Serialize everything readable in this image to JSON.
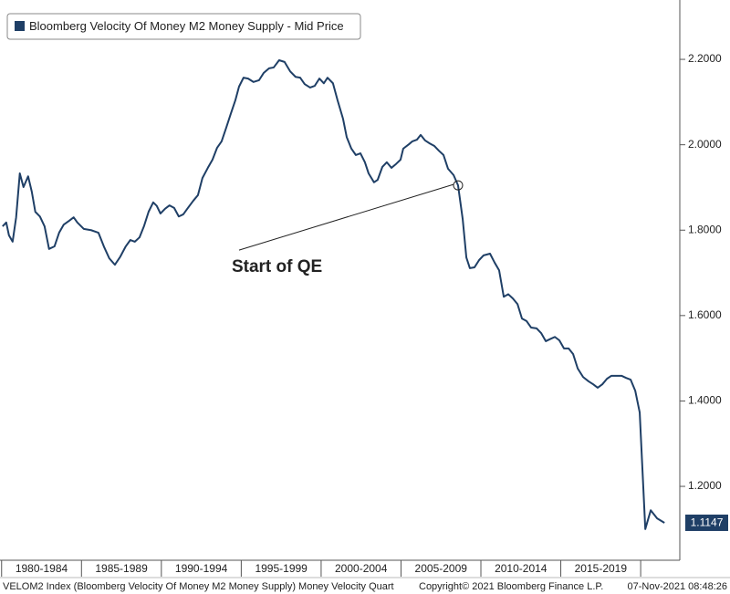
{
  "chart_data": {
    "type": "line",
    "series": [
      {
        "name": "Bloomberg Velocity Of Money M2 Money Supply - Mid Price",
        "color": "#1f3f66",
        "values": [
          1.809,
          1.818,
          1.788,
          1.773,
          1.83,
          1.933,
          1.901,
          1.926,
          1.89,
          1.843,
          1.832,
          1.809,
          1.756,
          1.762,
          1.794,
          1.813,
          1.822,
          1.83,
          1.818,
          1.803,
          1.8,
          1.794,
          1.762,
          1.734,
          1.719,
          1.738,
          1.762,
          1.777,
          1.773,
          1.783,
          1.809,
          1.843,
          1.865,
          1.857,
          1.839,
          1.85,
          1.858,
          1.852,
          1.832,
          1.837,
          1.852,
          1.869,
          1.882,
          1.922,
          1.946,
          1.965,
          1.993,
          2.008,
          2.04,
          2.072,
          2.104,
          2.136,
          2.157,
          2.155,
          2.147,
          2.151,
          2.168,
          2.179,
          2.181,
          2.198,
          2.194,
          2.172,
          2.159,
          2.157,
          2.142,
          2.134,
          2.138,
          2.155,
          2.144,
          2.157,
          2.144,
          2.104,
          2.061,
          2.018,
          1.991,
          1.976,
          1.98,
          1.959,
          1.933,
          1.912,
          1.918,
          1.948,
          1.959,
          1.946,
          1.955,
          1.965,
          1.991,
          2.001,
          2.008,
          2.012,
          2.023,
          2.01,
          2.003,
          1.997,
          1.986,
          1.976,
          1.944,
          1.929,
          1.905,
          1.826,
          1.736,
          1.711,
          1.713,
          1.73,
          1.741,
          1.745,
          1.724,
          1.706,
          1.644,
          1.65,
          1.64,
          1.627,
          1.593,
          1.587,
          1.572,
          1.57,
          1.559,
          1.54,
          1.545,
          1.55,
          1.542,
          1.523,
          1.523,
          1.51,
          1.476,
          1.456,
          1.446,
          1.439,
          1.431,
          1.439,
          1.452,
          1.459,
          1.459,
          1.459,
          1.454,
          1.45,
          1.424,
          1.373,
          1.1,
          1.144,
          1.125,
          1.1147
        ]
      }
    ],
    "x": [
      1980.06,
      1980.29,
      1980.46,
      1980.69,
      1980.91,
      1981.14,
      1981.37,
      1981.66,
      1981.89,
      1982.11,
      1982.4,
      1982.69,
      1982.97,
      1983.31,
      1983.6,
      1983.89,
      1984.23,
      1984.51,
      1984.74,
      1985.14,
      1985.6,
      1986.06,
      1986.4,
      1986.74,
      1987.09,
      1987.43,
      1987.77,
      1988.06,
      1988.34,
      1988.63,
      1988.91,
      1989.2,
      1989.49,
      1989.71,
      1989.94,
      1990.23,
      1990.51,
      1990.8,
      1991.09,
      1991.37,
      1991.66,
      1992,
      1992.29,
      1992.57,
      1992.91,
      1993.2,
      1993.49,
      1993.77,
      1994.06,
      1994.34,
      1994.63,
      1994.86,
      1995.14,
      1995.43,
      1995.77,
      1996.11,
      1996.4,
      1996.74,
      1997.03,
      1997.37,
      1997.71,
      1998.06,
      1998.4,
      1998.69,
      1998.97,
      1999.31,
      1999.6,
      1999.89,
      2000.17,
      2000.4,
      2000.74,
      2001.03,
      2001.37,
      2001.6,
      2001.89,
      2002.17,
      2002.46,
      2002.74,
      2002.97,
      2003.31,
      2003.54,
      2003.83,
      2004.11,
      2004.4,
      2004.69,
      2004.97,
      2005.14,
      2005.49,
      2005.71,
      2006,
      2006.23,
      2006.51,
      2006.8,
      2007.09,
      2007.37,
      2007.66,
      2007.94,
      2008.29,
      2008.57,
      2008.86,
      2009.09,
      2009.31,
      2009.6,
      2009.89,
      2010.17,
      2010.57,
      2010.86,
      2011.14,
      2011.43,
      2011.71,
      2012,
      2012.29,
      2012.57,
      2012.86,
      2013.14,
      2013.49,
      2013.77,
      2014.06,
      2014.34,
      2014.63,
      2014.91,
      2015.2,
      2015.49,
      2015.77,
      2016.06,
      2016.4,
      2016.74,
      2017.03,
      2017.31,
      2017.6,
      2017.89,
      2018.17,
      2018.51,
      2018.8,
      2019.09,
      2019.37,
      2019.66,
      2019.94,
      2020.29,
      2020.63,
      2021.03,
      2021.49
    ],
    "xlim": [
      1979.9,
      2022.45
    ],
    "xticks": [
      {
        "value": 1980,
        "label": "1980-1984"
      },
      {
        "value": 1985,
        "label": "1985-1989"
      },
      {
        "value": 1990,
        "label": "1990-1994"
      },
      {
        "value": 1995,
        "label": "1995-1999"
      },
      {
        "value": 2000,
        "label": "2000-2004"
      },
      {
        "value": 2005,
        "label": "2005-2009"
      },
      {
        "value": 2010,
        "label": "2010-2014"
      },
      {
        "value": 2015,
        "label": "2015-2019"
      }
    ],
    "ylim": [
      1.027,
      2.339
    ],
    "yticks": [
      {
        "value": 1.2,
        "label": "1.2000"
      },
      {
        "value": 1.4,
        "label": "1.4000"
      },
      {
        "value": 1.6,
        "label": "1.6000"
      },
      {
        "value": 1.8,
        "label": "1.8000"
      },
      {
        "value": 2.0,
        "label": "2.0000"
      },
      {
        "value": 2.2,
        "label": "2.2000"
      }
    ],
    "last_value_label": "1.1147",
    "annotation": {
      "text": "Start of QE",
      "x": 2008.57,
      "y": 1.905
    },
    "footer": {
      "left": "VELOM2 Index (Bloomberg Velocity Of Money M2 Money Supply) Money Velocity  Quart",
      "middle": "Copyright© 2021 Bloomberg Finance L.P.",
      "right": "07-Nov-2021 08:48:26"
    }
  }
}
